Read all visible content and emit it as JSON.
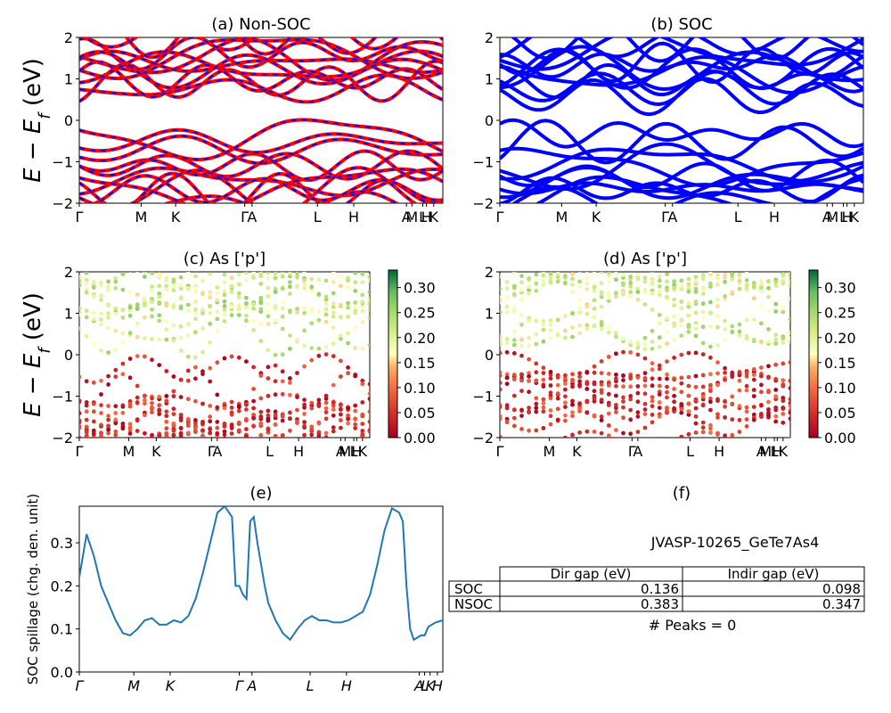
{
  "charts": {
    "a": {
      "title": "(a) Non-SOC",
      "ylabel": "E − E_f (eV)",
      "yticks": [
        "2",
        "1",
        "0",
        "−1",
        "−2"
      ],
      "kpoints": [
        "Γ",
        "M",
        "K",
        "Γ",
        "A",
        "L",
        "H",
        "A",
        "M",
        "L",
        "H",
        "K"
      ]
    },
    "b": {
      "title": "(b) SOC",
      "yticks": [
        "2",
        "1",
        "0",
        "−1",
        "−2"
      ],
      "kpoints": [
        "Γ",
        "M",
        "K",
        "Γ",
        "A",
        "L",
        "H",
        "A",
        "M",
        "L",
        "H",
        "K"
      ]
    },
    "c": {
      "title": "(c)  As ['p']",
      "ylabel": "E − E_f (eV)",
      "yticks": [
        "2",
        "1",
        "0",
        "−1",
        "−2"
      ],
      "kpoints": [
        "Γ",
        "M",
        "K",
        "Γ",
        "A",
        "L",
        "H",
        "A",
        "M",
        "L",
        "H",
        "K"
      ],
      "colorbar_ticks": [
        "0.30",
        "0.25",
        "0.20",
        "0.15",
        "0.10",
        "0.05",
        "0.00"
      ]
    },
    "d": {
      "title": "(d) As ['p']",
      "yticks": [
        "2",
        "1",
        "0",
        "−1",
        "−2"
      ],
      "kpoints": [
        "Γ",
        "M",
        "K",
        "Γ",
        "A",
        "L",
        "H",
        "A",
        "M",
        "L",
        "H",
        "K"
      ],
      "colorbar_ticks": [
        "0.30",
        "0.25",
        "0.20",
        "0.15",
        "0.10",
        "0.05",
        "0.00"
      ]
    },
    "e": {
      "title": "(e)",
      "ylabel": "SOC spillage (chg. den. unit)",
      "yticks": [
        "0.3",
        "0.2",
        "0.1",
        "0.0"
      ],
      "kpoints": [
        "Γ",
        "M",
        "K",
        "Γ",
        "A",
        "L",
        "H",
        "A",
        "L",
        "K",
        "H"
      ]
    },
    "f": {
      "title": "(f)",
      "material": "JVASP-10265_GeTe7As4",
      "col_headers": [
        "Dir gap (eV)",
        "Indir gap (eV)"
      ],
      "rows": [
        {
          "label": "SOC",
          "dir": "0.136",
          "indir": "0.098"
        },
        {
          "label": "NSOC",
          "dir": "0.383",
          "indir": "0.347"
        }
      ],
      "peaks": "# Peaks = 0"
    }
  },
  "colors": {
    "nonsoc_band": "#ff0000",
    "nonsoc_dash": "#0000ff",
    "soc_band": "#0000ff",
    "spillage_line": "#1f77b4"
  },
  "chart_data": [
    {
      "type": "line",
      "name": "band-structure-nonsoc",
      "ylim": [
        -2,
        2
      ],
      "colors": [
        "red",
        "blue-dashed"
      ]
    },
    {
      "type": "line",
      "name": "band-structure-soc",
      "ylim": [
        -2,
        2
      ],
      "colors": [
        "blue"
      ]
    },
    {
      "type": "scatter",
      "name": "projected-bands-nonsoc-As-p",
      "ylim": [
        -2,
        2
      ],
      "colormap": "RdYlGn",
      "clim": [
        0,
        0.33
      ]
    },
    {
      "type": "scatter",
      "name": "projected-bands-soc-As-p",
      "ylim": [
        -2,
        2
      ],
      "colormap": "RdYlGn",
      "clim": [
        0,
        0.33
      ]
    },
    {
      "type": "line",
      "name": "soc-spillage",
      "ylim": [
        0,
        0.385
      ],
      "x": [
        0,
        0.02,
        0.04,
        0.06,
        0.08,
        0.1,
        0.12,
        0.14,
        0.16,
        0.18,
        0.2,
        0.22,
        0.24,
        0.26,
        0.28,
        0.3,
        0.32,
        0.34,
        0.36,
        0.38,
        0.4,
        0.42,
        0.43,
        0.44,
        0.45,
        0.46,
        0.47,
        0.48,
        0.49,
        0.5,
        0.51,
        0.52,
        0.54,
        0.56,
        0.58,
        0.6,
        0.62,
        0.64,
        0.66,
        0.68,
        0.7,
        0.72,
        0.74,
        0.76,
        0.78,
        0.8,
        0.82,
        0.84,
        0.86,
        0.88,
        0.89,
        0.9,
        0.91,
        0.92,
        0.93,
        0.94,
        0.95,
        0.96,
        0.97,
        0.98,
        1.0
      ],
      "y": [
        0.22,
        0.32,
        0.27,
        0.2,
        0.16,
        0.12,
        0.09,
        0.085,
        0.1,
        0.12,
        0.125,
        0.11,
        0.11,
        0.12,
        0.115,
        0.13,
        0.17,
        0.23,
        0.3,
        0.37,
        0.385,
        0.36,
        0.2,
        0.2,
        0.18,
        0.17,
        0.35,
        0.36,
        0.3,
        0.25,
        0.2,
        0.16,
        0.12,
        0.09,
        0.075,
        0.1,
        0.12,
        0.13,
        0.12,
        0.12,
        0.115,
        0.115,
        0.12,
        0.13,
        0.14,
        0.18,
        0.25,
        0.33,
        0.38,
        0.37,
        0.35,
        0.2,
        0.1,
        0.075,
        0.08,
        0.085,
        0.085,
        0.105,
        0.11,
        0.115,
        0.12
      ]
    }
  ]
}
